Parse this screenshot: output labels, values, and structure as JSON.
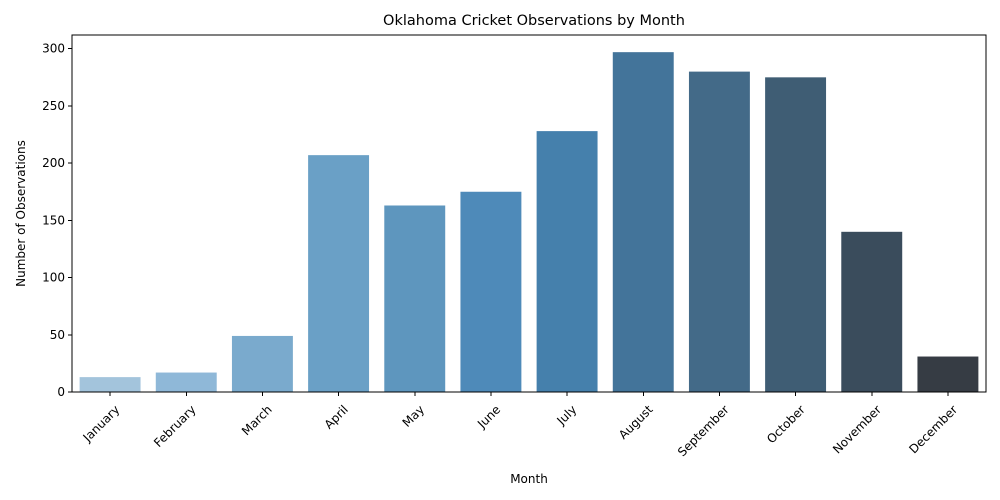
{
  "chart_data": {
    "type": "bar",
    "title": "Oklahoma Cricket Observations by Month",
    "xlabel": "Month",
    "ylabel": "Number of Observations",
    "categories": [
      "January",
      "February",
      "March",
      "April",
      "May",
      "June",
      "July",
      "August",
      "September",
      "October",
      "November",
      "December"
    ],
    "values": [
      13,
      17,
      49,
      207,
      163,
      175,
      228,
      297,
      280,
      275,
      140,
      31
    ],
    "colors": [
      "#a3c4dc",
      "#8fb8d8",
      "#7aaacd",
      "#6aa0c6",
      "#5e96be",
      "#4e8ab9",
      "#4580ac",
      "#43749a",
      "#436a88",
      "#3f5d74",
      "#3a4c5c",
      "#363c44"
    ],
    "ylim": [
      0,
      312
    ],
    "yticks": [
      0,
      50,
      100,
      150,
      200,
      250,
      300
    ],
    "grid": false,
    "legend": "none"
  }
}
